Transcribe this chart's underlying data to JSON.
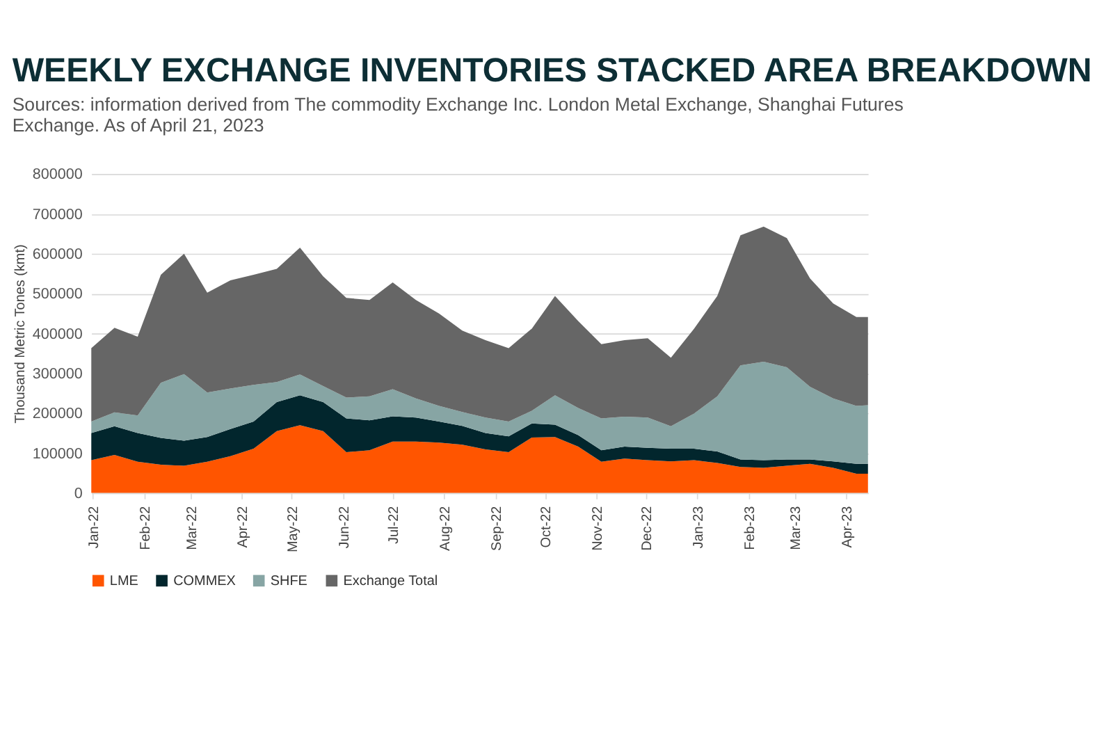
{
  "chart_data": {
    "type": "area",
    "stacked": true,
    "title": "WEEKLY EXCHANGE INVENTORIES STACKED AREA BREAKDOWN",
    "subtitle": "Sources: information derived from The commodity Exchange Inc. London Metal Exchange, Shanghai Futures Exchange. As of April 21, 2023",
    "ylabel": "Thousand Metric Tones (kmt)",
    "x": [
      "2021-12-31",
      "2022-01-14",
      "2022-01-28",
      "2022-02-11",
      "2022-02-25",
      "2022-03-11",
      "2022-03-25",
      "2022-04-08",
      "2022-04-22",
      "2022-05-06",
      "2022-05-20",
      "2022-06-03",
      "2022-06-17",
      "2022-07-01",
      "2022-07-15",
      "2022-07-29",
      "2022-08-12",
      "2022-08-26",
      "2022-09-09",
      "2022-09-23",
      "2022-10-07",
      "2022-10-21",
      "2022-11-04",
      "2022-11-18",
      "2022-12-02",
      "2022-12-16",
      "2022-12-30",
      "2023-01-13",
      "2023-01-27",
      "2023-02-10",
      "2023-02-24",
      "2023-03-10",
      "2023-03-24",
      "2023-04-07",
      "2023-04-14"
    ],
    "series": [
      {
        "name": "LME",
        "color": "#ff5500",
        "values": [
          82000,
          95000,
          78000,
          71000,
          68000,
          78000,
          92000,
          111000,
          155000,
          170000,
          155000,
          102000,
          107000,
          129000,
          129000,
          126000,
          121000,
          109000,
          102000,
          139000,
          140000,
          116000,
          78000,
          86000,
          82000,
          79000,
          82000,
          75000,
          65000,
          63000,
          68000,
          73000,
          63000,
          48000,
          48000
        ]
      },
      {
        "name": "COMMEX",
        "color": "#02262d",
        "values": [
          68000,
          72000,
          72000,
          67000,
          63000,
          62000,
          68000,
          68000,
          73000,
          75000,
          73000,
          85000,
          75000,
          63000,
          60000,
          53000,
          47000,
          41000,
          40000,
          35000,
          31000,
          29000,
          29000,
          30000,
          31000,
          32000,
          29000,
          29000,
          19000,
          19000,
          16000,
          11000,
          16000,
          25000,
          25000
        ]
      },
      {
        "name": "SHFE",
        "color": "#87a5a4",
        "values": [
          29000,
          35000,
          44000,
          138000,
          167000,
          112000,
          102000,
          92000,
          50000,
          52000,
          40000,
          52000,
          60000,
          68000,
          48000,
          39000,
          35000,
          39000,
          37000,
          32000,
          74000,
          68000,
          80000,
          75000,
          76000,
          56000,
          88000,
          138000,
          236000,
          247000,
          231000,
          182000,
          158000,
          145000,
          147000
        ]
      },
      {
        "name": "Exchange Total",
        "color": "#666666",
        "values": [
          184000,
          212000,
          198000,
          271000,
          302000,
          250000,
          271000,
          276000,
          284000,
          318000,
          275000,
          250000,
          242000,
          268000,
          247000,
          232000,
          204000,
          194000,
          184000,
          206000,
          249000,
          218000,
          186000,
          192000,
          199000,
          172000,
          213000,
          252000,
          326000,
          339000,
          324000,
          272000,
          238000,
          223000,
          221000
        ]
      }
    ],
    "xlim": [
      "2021-12-31",
      "2023-04-14"
    ],
    "xticks": [
      {
        "value": "2022-01-01",
        "label": "Jan-22"
      },
      {
        "value": "2022-02-01",
        "label": "Feb-22"
      },
      {
        "value": "2022-03-01",
        "label": "Mar-22"
      },
      {
        "value": "2022-04-01",
        "label": "Apr-22"
      },
      {
        "value": "2022-05-01",
        "label": "May-22"
      },
      {
        "value": "2022-06-01",
        "label": "Jun-22"
      },
      {
        "value": "2022-07-01",
        "label": "Jul-22"
      },
      {
        "value": "2022-08-01",
        "label": "Aug-22"
      },
      {
        "value": "2022-09-01",
        "label": "Sep-22"
      },
      {
        "value": "2022-10-01",
        "label": "Oct-22"
      },
      {
        "value": "2022-11-01",
        "label": "Nov-22"
      },
      {
        "value": "2022-12-01",
        "label": "Dec-22"
      },
      {
        "value": "2023-01-01",
        "label": "Jan-23"
      },
      {
        "value": "2023-02-01",
        "label": "Feb-23"
      },
      {
        "value": "2023-03-01",
        "label": "Mar-23"
      },
      {
        "value": "2023-04-01",
        "label": "Apr-23"
      }
    ],
    "ylim": [
      0,
      800000
    ],
    "yticks": [
      0,
      100000,
      200000,
      300000,
      400000,
      500000,
      600000,
      700000,
      800000
    ],
    "grid": "y",
    "legend": "bottom"
  }
}
